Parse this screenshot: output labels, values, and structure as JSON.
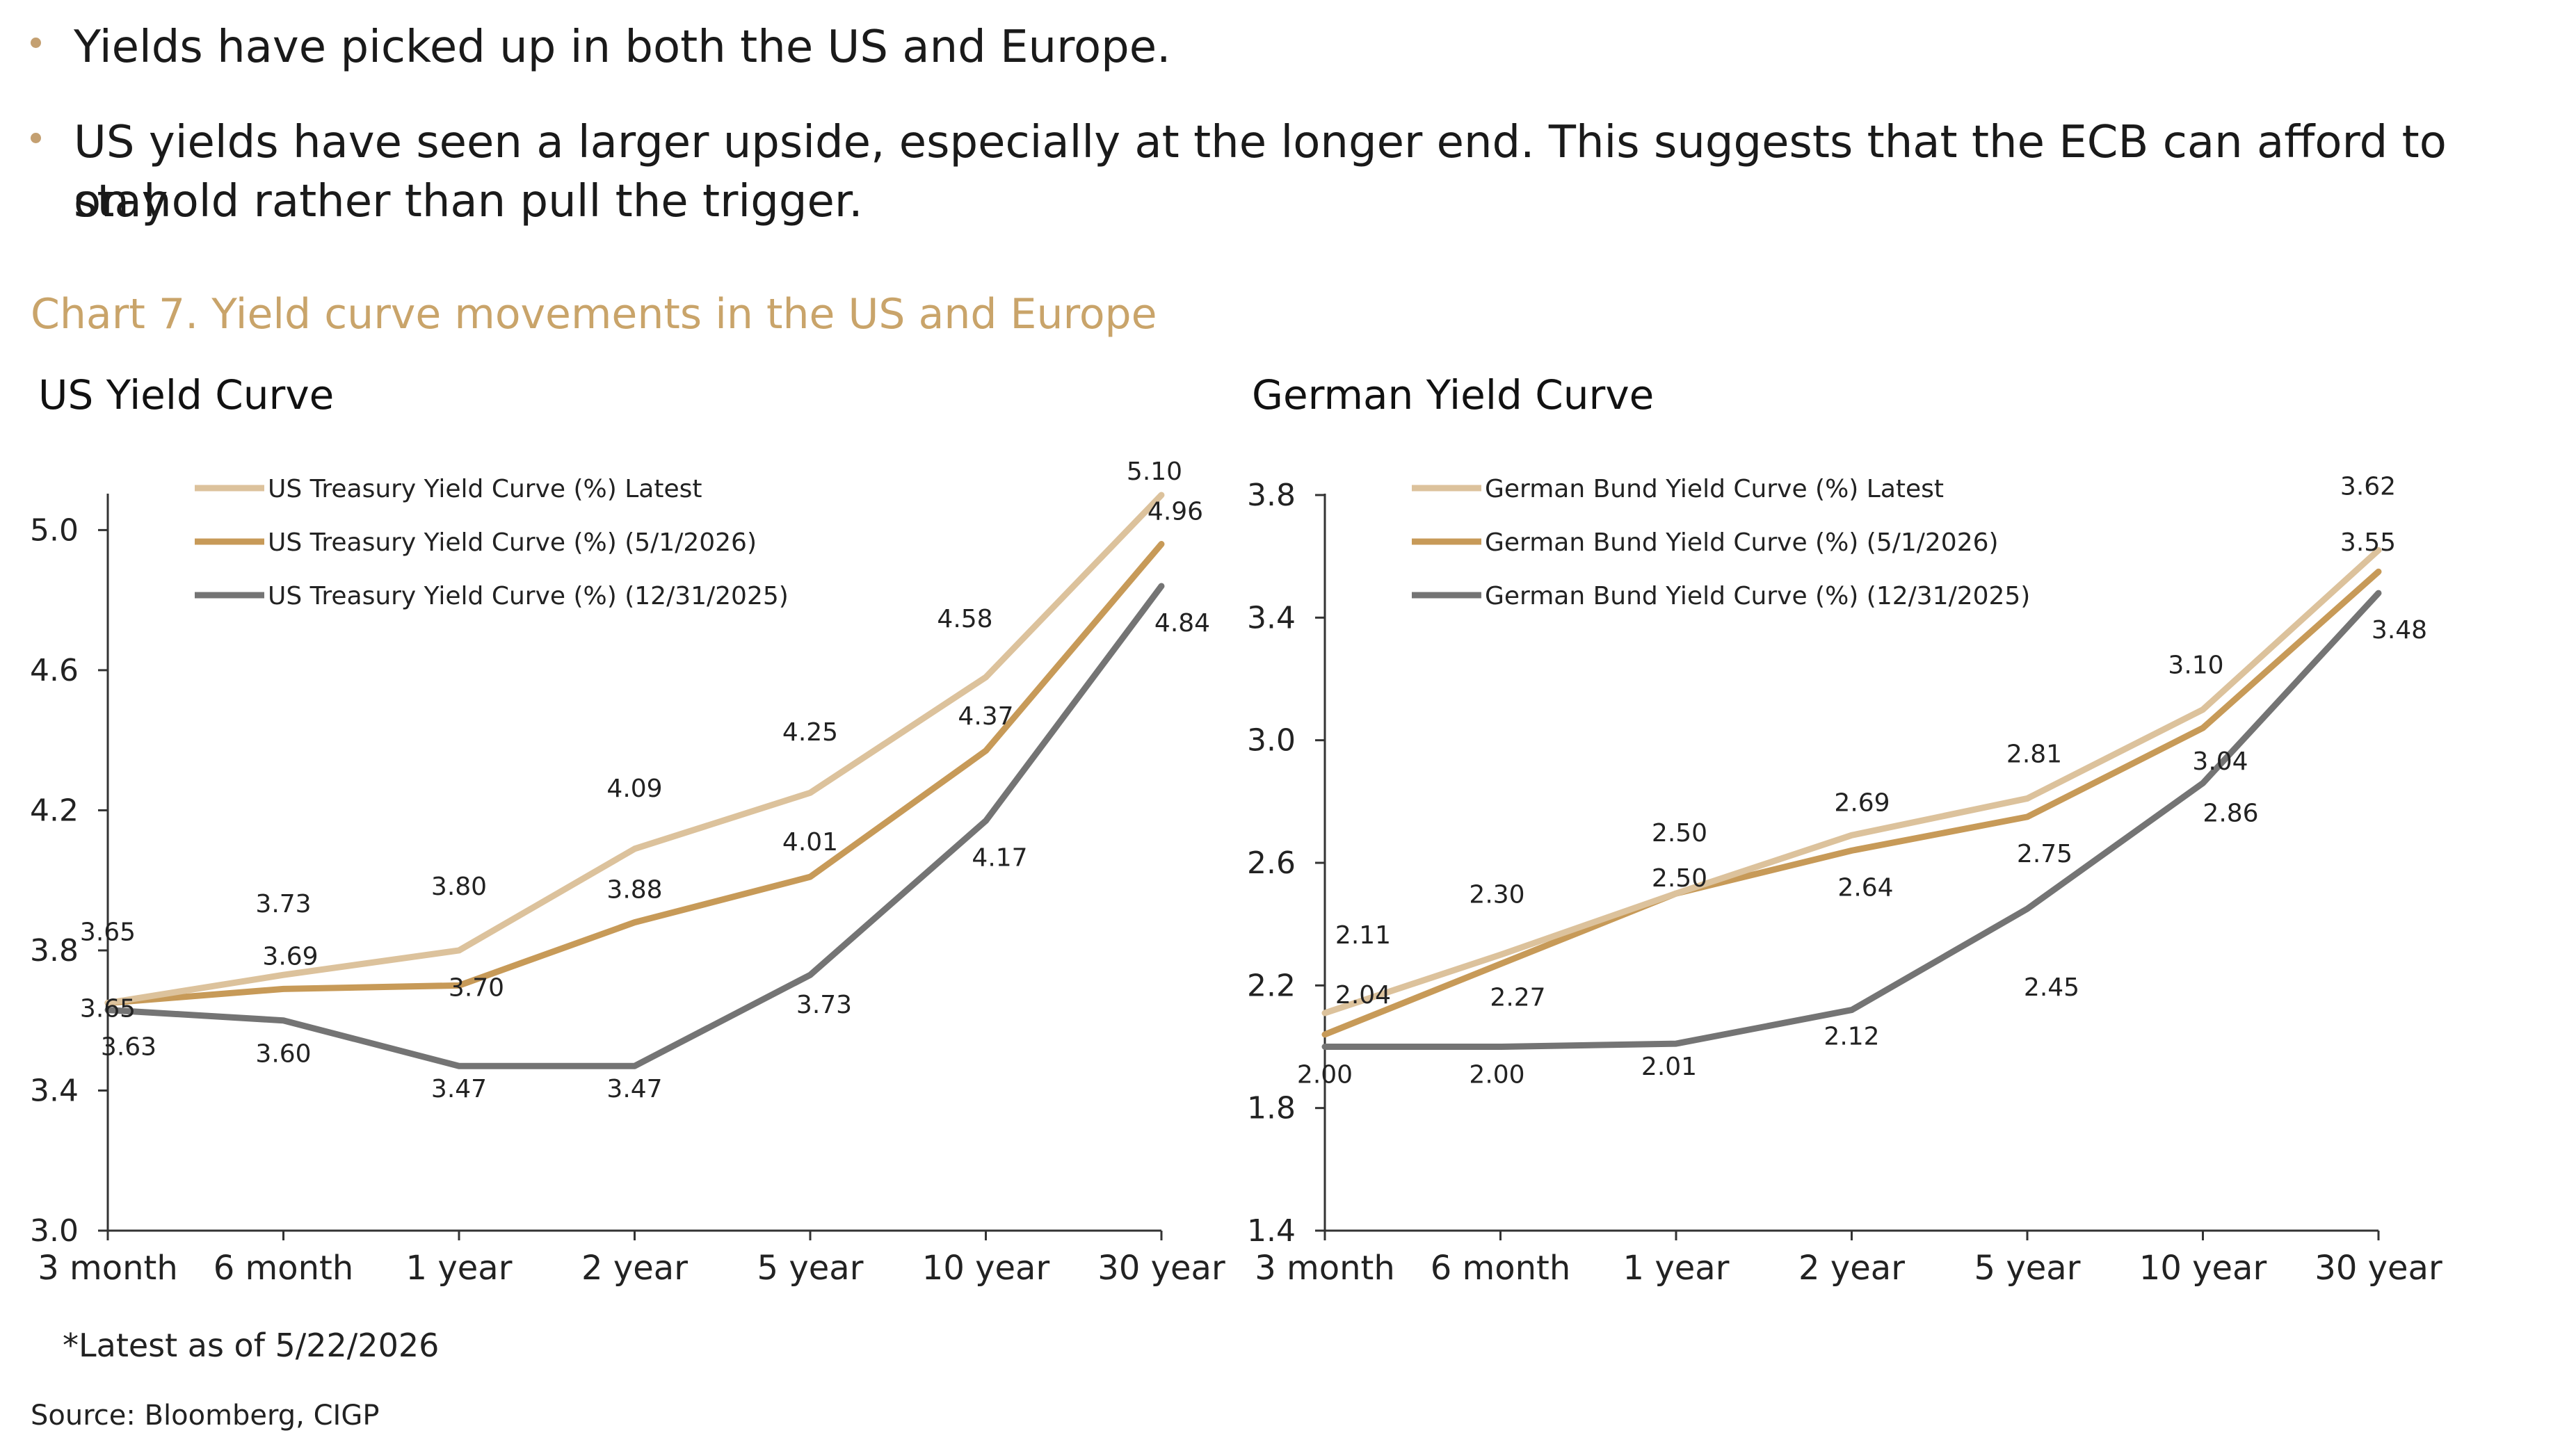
{
  "bullets": [
    "Yields have picked up in both the US and Europe.",
    "US yields have seen a larger upside, especially at the longer end. This suggests that the ECB can afford to stay",
    "on hold rather than pull the trigger."
  ],
  "chart_title": "Chart 7. Yield curve movements in the US and Europe",
  "footnote": "*Latest as of 5/22/2026",
  "source": "Source: Bloomberg, CIGP",
  "colors": {
    "accent": "#C9A46A",
    "bullet": "#C4A071",
    "latest": "#DCC29C",
    "mid": "#C79A58",
    "old": "#747474",
    "axis": "#333333"
  },
  "chart_data": [
    {
      "type": "line",
      "title": "US Yield Curve",
      "categories": [
        "3 month",
        "6 month",
        "1 year",
        "2 year",
        "5 year",
        "10 year",
        "30 year"
      ],
      "ylim": [
        3.0,
        5.1
      ],
      "yticks": [
        "3.0",
        "3.4",
        "3.8",
        "4.2",
        "4.6",
        "5.0"
      ],
      "grid": false,
      "legend_position": "top-left",
      "series": [
        {
          "name": "US Treasury Yield Curve (%) Latest",
          "values": [
            3.65,
            3.73,
            3.8,
            4.09,
            4.25,
            4.58,
            5.1
          ],
          "labels": [
            "3.65",
            "3.73",
            "3.80",
            "4.09",
            "4.25",
            "4.58",
            "5.10"
          ]
        },
        {
          "name": "US Treasury Yield Curve (%) (5/1/2026)",
          "values": [
            3.65,
            3.69,
            3.7,
            3.88,
            4.01,
            4.37,
            4.96
          ],
          "labels": [
            "3.65",
            "3.69",
            "3.70",
            "3.88",
            "4.01",
            "4.37",
            "4.96"
          ]
        },
        {
          "name": "US Treasury Yield Curve (%) (12/31/2025)",
          "values": [
            3.63,
            3.6,
            3.47,
            3.47,
            3.73,
            4.17,
            4.84
          ],
          "labels": [
            "3.63",
            "3.60",
            "3.47",
            "3.47",
            "3.73",
            "4.17",
            "4.84"
          ]
        }
      ]
    },
    {
      "type": "line",
      "title": "German Yield Curve",
      "categories": [
        "3 month",
        "6 month",
        "1 year",
        "2 year",
        "5 year",
        "10 year",
        "30 year"
      ],
      "ylim": [
        1.4,
        3.8
      ],
      "yticks": [
        "1.4",
        "1.8",
        "2.2",
        "2.6",
        "3.0",
        "3.4",
        "3.8"
      ],
      "grid": false,
      "legend_position": "top-left",
      "series": [
        {
          "name": "German Bund Yield Curve (%) Latest",
          "values": [
            2.11,
            2.3,
            2.5,
            2.69,
            2.81,
            3.1,
            3.62
          ],
          "labels": [
            "2.11",
            "2.30",
            "2.50",
            "2.69",
            "2.81",
            "3.10",
            "3.62"
          ]
        },
        {
          "name": "German Bund Yield Curve (%) (5/1/2026)",
          "values": [
            2.04,
            2.27,
            2.5,
            2.64,
            2.75,
            3.04,
            3.55
          ],
          "labels": [
            "2.04",
            "2.27",
            "2.50",
            "2.64",
            "2.75",
            "3.04",
            "3.55"
          ]
        },
        {
          "name": "German Bund Yield Curve (%) (12/31/2025)",
          "values": [
            2.0,
            2.0,
            2.01,
            2.12,
            2.45,
            2.86,
            3.48
          ],
          "labels": [
            "2.00",
            "2.00",
            "2.01",
            "2.12",
            "2.45",
            "2.86",
            "3.48"
          ]
        }
      ]
    }
  ]
}
